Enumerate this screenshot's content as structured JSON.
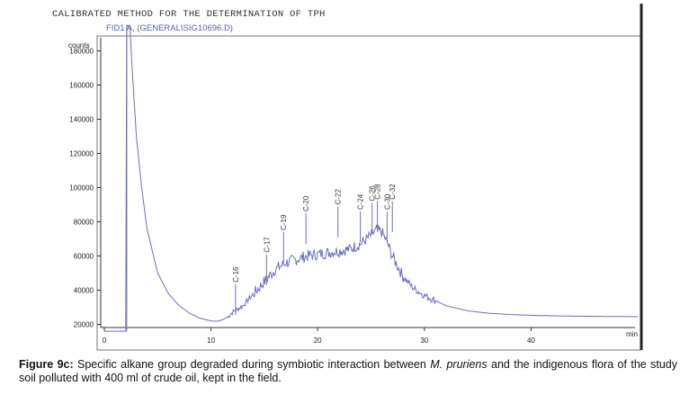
{
  "header": {
    "title": "CALIBRATED METHOD FOR THE DETERMINATION OF TPH",
    "trace_label": "FID1 A, (GENERAL\\SIG10696.D)"
  },
  "caption": {
    "label": "Figure 9c:",
    "text_a": " Specific alkane group degraded during symbiotic interaction between ",
    "species": "M. pruriens",
    "text_b": " and the indigenous flora of the study soil polluted with 400 ml of crude oil, kept in the field."
  },
  "chart_data": {
    "type": "line",
    "title": "CALIBRATED METHOD FOR THE DETERMINATION OF TPH",
    "series_name": "FID1 A, (GENERAL\\SIG10696.D)",
    "ylabel": "counts",
    "xlabel": "min",
    "xlim": [
      0,
      50
    ],
    "ylim": [
      15000,
      195000
    ],
    "xticks": [
      0,
      10,
      20,
      30,
      40
    ],
    "yticks": [
      20000,
      40000,
      60000,
      80000,
      100000,
      120000,
      140000,
      160000,
      180000
    ],
    "x": [
      0,
      2,
      2.1,
      2.4,
      2.6,
      2.8,
      3.0,
      3.5,
      4,
      5,
      6,
      7,
      8,
      9,
      10,
      10.5,
      11,
      11.5,
      12,
      13,
      14,
      15,
      16,
      17,
      18,
      19,
      20,
      21,
      22,
      23,
      24,
      25,
      25.5,
      26,
      26.5,
      27,
      27.5,
      28,
      29,
      30,
      31,
      32,
      34,
      36,
      38,
      40,
      42,
      44,
      46,
      48,
      50
    ],
    "y": [
      16000,
      16000,
      194000,
      194000,
      170000,
      150000,
      130000,
      100000,
      76000,
      50000,
      38000,
      31000,
      26500,
      23500,
      22000,
      21800,
      22500,
      24000,
      27000,
      31000,
      38000,
      45000,
      52000,
      56000,
      58000,
      60000,
      61000,
      62000,
      63000,
      64000,
      67000,
      72000,
      75000,
      74000,
      68000,
      60000,
      54000,
      48000,
      41000,
      37000,
      34000,
      31000,
      28000,
      26500,
      25800,
      25300,
      25000,
      24800,
      24700,
      24600,
      24500
    ],
    "peaks": [
      {
        "label": "C-16",
        "x": 12.3,
        "y": 27500
      },
      {
        "label": "C-17",
        "x": 15.2,
        "y": 45000
      },
      {
        "label": "C-19",
        "x": 16.8,
        "y": 58000
      },
      {
        "label": "C-20",
        "x": 18.9,
        "y": 69000
      },
      {
        "label": "C-22",
        "x": 21.9,
        "y": 73000
      },
      {
        "label": "C-24",
        "x": 24.0,
        "y": 70000
      },
      {
        "label": "C-26",
        "x": 25.1,
        "y": 75000
      },
      {
        "label": "C-28",
        "x": 25.6,
        "y": 76000
      },
      {
        "label": "C-30",
        "x": 26.5,
        "y": 70000
      },
      {
        "label": "C-32",
        "x": 27.0,
        "y": 76000
      }
    ]
  }
}
